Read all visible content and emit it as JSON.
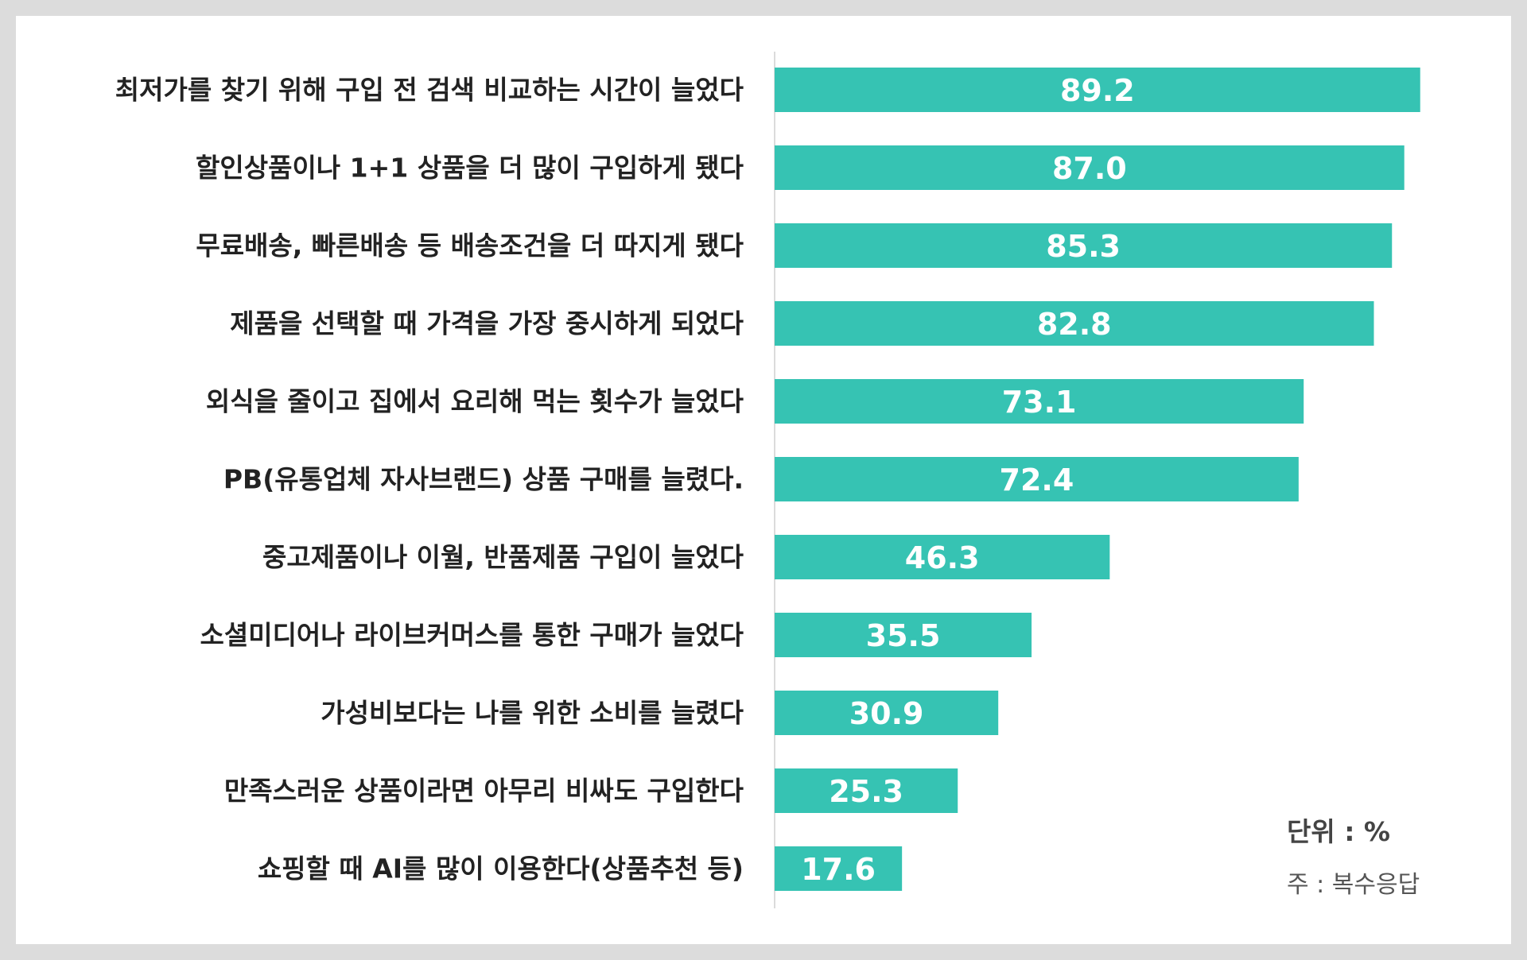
{
  "chart_data": {
    "type": "bar",
    "orientation": "horizontal",
    "categories": [
      "최저가를 찾기 위해 구입 전 검색 비교하는 시간이 늘었다",
      "할인상품이나 1+1 상품을 더 많이 구입하게 됐다",
      "무료배송, 빠른배송 등 배송조건을 더 따지게 됐다",
      "제품을 선택할 때 가격을 가장 중시하게 되었다",
      "외식을 줄이고 집에서 요리해 먹는 횟수가 늘었다",
      "PB(유통업체 자사브랜드) 상품 구매를 늘렸다.",
      "중고제품이나 이월, 반품제품 구입이 늘었다",
      "소셜미디어나 라이브커머스를 통한 구매가 늘었다",
      "가성비보다는 나를 위한 소비를 늘렸다",
      "만족스러운 상품이라면 아무리 비싸도 구입한다",
      "쇼핑할 때 AI를 많이 이용한다(상품추천 등)"
    ],
    "values": [
      89.2,
      87.0,
      85.3,
      82.8,
      73.1,
      72.4,
      46.3,
      35.5,
      30.9,
      25.3,
      17.6
    ],
    "value_labels": [
      "89.2",
      "87.0",
      "85.3",
      "82.8",
      "73.1",
      "72.4",
      "46.3",
      "35.5",
      "30.9",
      "25.3",
      "17.6"
    ],
    "xlim": [
      0,
      100
    ],
    "grid": false,
    "bar_color": "#36c3b3",
    "unit_label": "단위 : %",
    "note": "주 : 복수응답"
  }
}
